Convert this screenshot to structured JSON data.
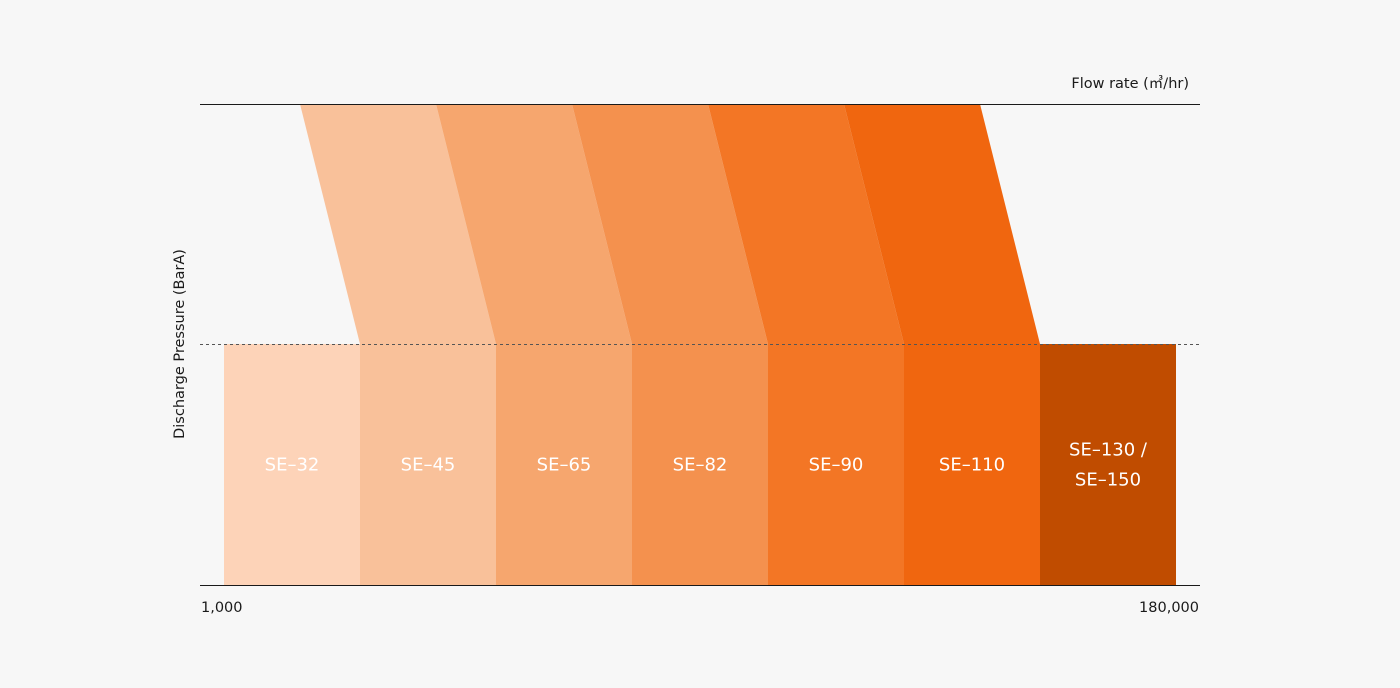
{
  "chart_data": {
    "type": "bar",
    "xlabel": "Flow rate (㎥/hr)",
    "ylabel": "Discharge Pressure (BarA)",
    "x_tick_labels": [
      "1,000",
      "180,000"
    ],
    "categories": [
      "SE-32",
      "SE-45",
      "SE-65",
      "SE-82",
      "SE-90",
      "SE-110",
      "SE-130 / SE-150"
    ],
    "label_lines": [
      [
        "SE–32"
      ],
      [
        "SE–45"
      ],
      [
        "SE–65"
      ],
      [
        "SE–82"
      ],
      [
        "SE–90"
      ],
      [
        "SE–110"
      ],
      [
        "SE–130 /",
        "SE–150"
      ]
    ],
    "colors": [
      "#fdd3b8",
      "#f9c19a",
      "#f6a66e",
      "#f4914e",
      "#f37625",
      "#f0660f",
      "#c04c00"
    ],
    "band_colors": [
      "#f9c19a",
      "#f6a66e",
      "#f4914e",
      "#f37625",
      "#f0660f"
    ],
    "high_pressure_models": [
      "SE-45",
      "SE-65",
      "SE-82",
      "SE-90",
      "SE-110"
    ],
    "grid": false,
    "legend": "none"
  }
}
